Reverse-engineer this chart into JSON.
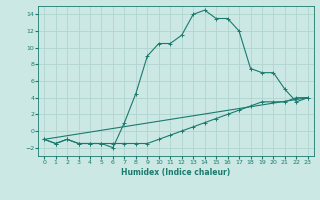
{
  "xlabel": "Humidex (Indice chaleur)",
  "background_color": "#cce8e4",
  "grid_color": "#b0d4d0",
  "line_color": "#1a7a6e",
  "xlim": [
    -0.5,
    23.5
  ],
  "ylim": [
    -3,
    15
  ],
  "xticks": [
    0,
    1,
    2,
    3,
    4,
    5,
    6,
    7,
    8,
    9,
    10,
    11,
    12,
    13,
    14,
    15,
    16,
    17,
    18,
    19,
    20,
    21,
    22,
    23
  ],
  "yticks": [
    -2,
    0,
    2,
    4,
    6,
    8,
    10,
    12,
    14
  ],
  "series": [
    {
      "x": [
        0,
        1,
        2,
        3,
        4,
        5,
        6,
        7,
        8,
        9,
        10,
        11,
        12,
        13,
        14,
        15,
        16,
        17,
        18,
        19,
        20,
        21,
        22,
        23
      ],
      "y": [
        -1,
        -1.5,
        -1,
        -1.5,
        -1.5,
        -1.5,
        -1.5,
        -1.5,
        -1.5,
        -1.5,
        -1,
        -0.5,
        0,
        0.5,
        1,
        1.5,
        2,
        2.5,
        3,
        3.5,
        3.5,
        3.5,
        4,
        4
      ],
      "marker": true
    },
    {
      "x": [
        0,
        1,
        2,
        3,
        4,
        5,
        6,
        7,
        8,
        9,
        10,
        11,
        12,
        13,
        14,
        15,
        16,
        17,
        18,
        19,
        20,
        21,
        22,
        23
      ],
      "y": [
        -1,
        -1.5,
        -1,
        -1.5,
        -1.5,
        -1.5,
        -2,
        1,
        4.5,
        9,
        10.5,
        10.5,
        11.5,
        14,
        14.5,
        13.5,
        13.5,
        12,
        7.5,
        7,
        7,
        5,
        3.5,
        4
      ],
      "marker": true
    },
    {
      "x": [
        0,
        23
      ],
      "y": [
        -1,
        4
      ],
      "marker": false
    }
  ]
}
